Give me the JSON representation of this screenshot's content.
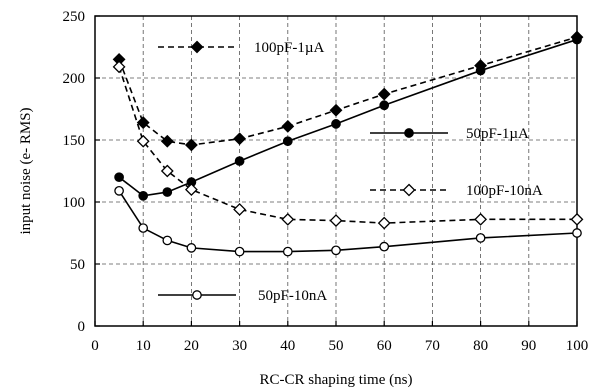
{
  "chart_data": {
    "type": "line",
    "title": "",
    "xlabel": "RC-CR shaping time (ns)",
    "ylabel": "input noise (e- RMS)",
    "xlim": [
      0,
      100
    ],
    "ylim": [
      0,
      250
    ],
    "xticks": [
      0,
      10,
      20,
      30,
      40,
      50,
      60,
      70,
      80,
      90,
      100
    ],
    "yticks": [
      0,
      50,
      100,
      150,
      200,
      250
    ],
    "grid": true,
    "legend": "inside plot",
    "series": [
      {
        "name": "100pF-1µA",
        "line_style": "dashed",
        "marker": "filled-diamond",
        "x": [
          5,
          10,
          15,
          20,
          30,
          40,
          50,
          60,
          80,
          100
        ],
        "y": [
          215,
          164,
          149,
          146,
          151,
          161,
          174,
          187,
          210,
          233
        ]
      },
      {
        "name": "50pF-1µA",
        "line_style": "solid",
        "marker": "filled-circle",
        "x": [
          5,
          10,
          15,
          20,
          30,
          40,
          50,
          60,
          80,
          100
        ],
        "y": [
          120,
          105,
          108,
          116,
          133,
          149,
          163,
          178,
          206,
          231
        ]
      },
      {
        "name": "100pF-10nA",
        "line_style": "dashed",
        "marker": "open-diamond",
        "x": [
          5,
          10,
          15,
          20,
          30,
          40,
          50,
          60,
          80,
          100
        ],
        "y": [
          209,
          149,
          125,
          110,
          94,
          86,
          85,
          83,
          86,
          86
        ]
      },
      {
        "name": "50pF-10nA",
        "line_style": "solid",
        "marker": "open-circle",
        "x": [
          5,
          10,
          15,
          20,
          30,
          40,
          50,
          60,
          80,
          100
        ],
        "y": [
          109,
          79,
          69,
          63,
          60,
          60,
          61,
          64,
          71,
          75
        ]
      }
    ]
  }
}
